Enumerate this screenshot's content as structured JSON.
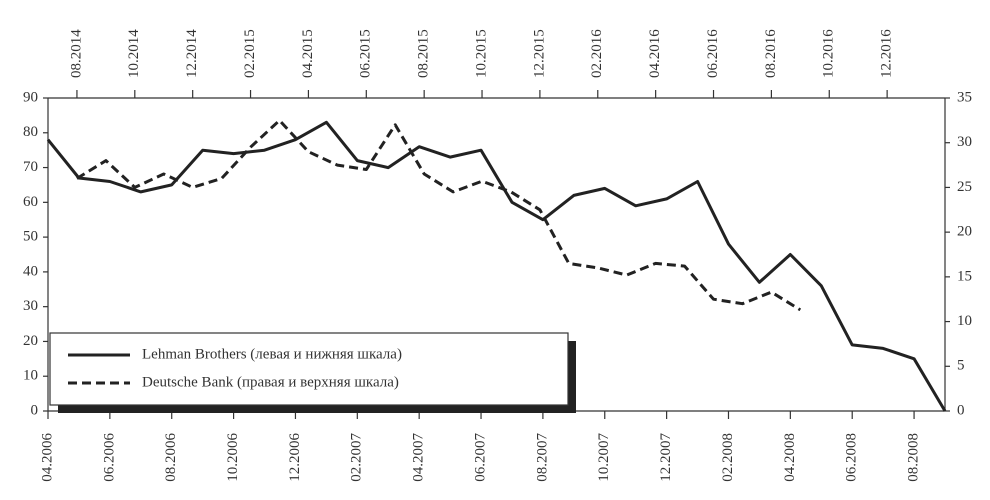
{
  "chart_data": {
    "type": "line",
    "xlim": [
      "04.2006",
      "09.2008"
    ],
    "xticks": [
      "04.2006",
      "06.2006",
      "08.2006",
      "10.2006",
      "12.2006",
      "02.2007",
      "04.2007",
      "06.2007",
      "08.2007",
      "10.2007",
      "12.2007",
      "02.2008",
      "04.2008",
      "06.2008",
      "08.2008"
    ],
    "x2lim": [
      "07.2014",
      "02.2017"
    ],
    "x2ticks": [
      "08.2014",
      "10.2014",
      "12.2014",
      "02.2015",
      "04.2015",
      "06.2015",
      "08.2015",
      "10.2015",
      "12.2015",
      "02.2016",
      "04.2016",
      "06.2016",
      "08.2016",
      "10.2016",
      "12.2016"
    ],
    "ylim": [
      0,
      90
    ],
    "yticks": [
      0,
      10,
      20,
      30,
      40,
      50,
      60,
      70,
      80,
      90
    ],
    "y2lim": [
      0,
      35
    ],
    "y2ticks": [
      0,
      5,
      10,
      15,
      20,
      25,
      30,
      35
    ],
    "legend": "lower left",
    "series": [
      {
        "name": "Lehman Brothers (левая и нижняя шкала)",
        "color": "#222222",
        "style": "solid",
        "x": [
          "04.2006",
          "05.2006",
          "06.2006",
          "07.2006",
          "08.2006",
          "09.2006",
          "10.2006",
          "11.2006",
          "12.2006",
          "01.2007",
          "02.2007",
          "03.2007",
          "04.2007",
          "05.2007",
          "06.2007",
          "07.2007",
          "08.2007",
          "09.2007",
          "10.2007",
          "11.2007",
          "12.2007",
          "01.2008",
          "02.2008",
          "03.2008",
          "04.2008",
          "05.2008",
          "06.2008",
          "07.2008",
          "08.2008",
          "09.2008"
        ],
        "values": [
          78,
          67,
          66,
          63,
          65,
          75,
          74,
          75,
          78,
          83,
          72,
          70,
          76,
          73,
          75,
          60,
          55,
          62,
          64,
          59,
          61,
          66,
          48,
          37,
          45,
          36,
          19,
          18,
          15,
          0
        ]
      },
      {
        "name": "Deutsche Bank (правая и верхняя шкала)",
        "color": "#222222",
        "style": "dashed",
        "axis": "y2",
        "xaxis": "x2",
        "x": [
          "08.2014",
          "09.2014",
          "10.2014",
          "11.2014",
          "12.2014",
          "01.2015",
          "02.2015",
          "03.2015",
          "04.2015",
          "05.2015",
          "06.2015",
          "07.2015",
          "08.2015",
          "09.2015",
          "10.2015",
          "11.2015",
          "12.2015",
          "01.2016",
          "02.2016",
          "03.2016",
          "04.2016",
          "05.2016",
          "06.2016",
          "07.2016",
          "08.2016",
          "09.2016"
        ],
        "values": [
          26,
          28,
          25,
          26.5,
          25,
          26,
          29.5,
          32.5,
          29,
          27.5,
          27,
          32,
          26.5,
          24.5,
          25.7,
          24.5,
          22.5,
          16.5,
          16,
          15.2,
          16.5,
          16.2,
          12.5,
          12,
          13.3,
          11.3
        ]
      }
    ]
  }
}
